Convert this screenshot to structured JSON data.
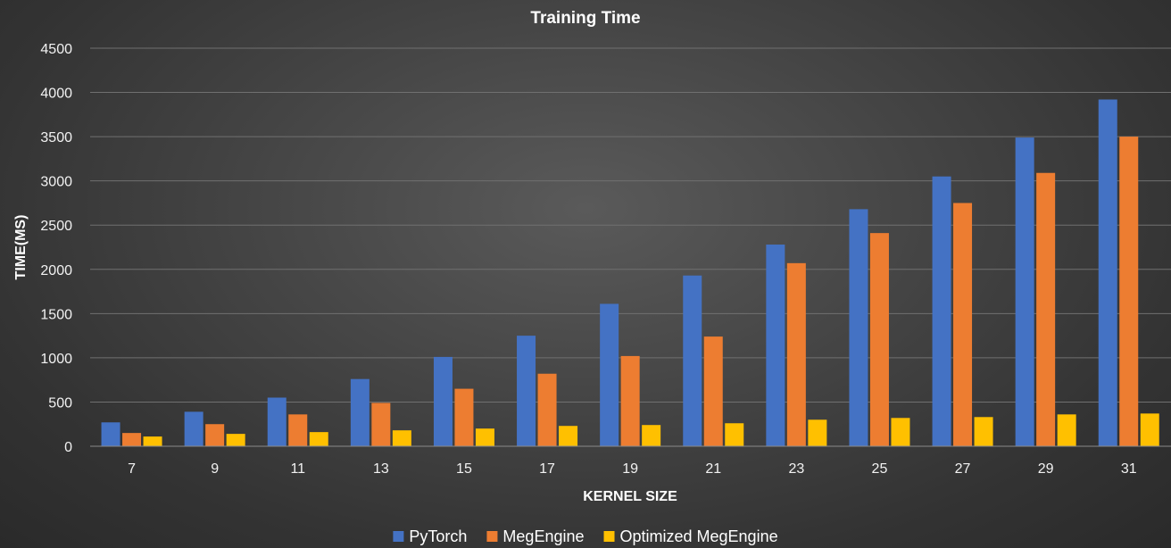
{
  "chart_data": {
    "type": "bar",
    "title": "Training Time",
    "xlabel": "KERNEL SIZE",
    "ylabel": "TIME(MS)",
    "ylim": [
      0,
      4500
    ],
    "yticks": [
      0,
      500,
      1000,
      1500,
      2000,
      2500,
      3000,
      3500,
      4000,
      4500
    ],
    "grid": true,
    "legend_position": "bottom",
    "categories": [
      "7",
      "9",
      "11",
      "13",
      "15",
      "17",
      "19",
      "21",
      "23",
      "25",
      "27",
      "29",
      "31"
    ],
    "series": [
      {
        "name": "PyTorch",
        "color": "#4472c4",
        "values": [
          270,
          390,
          550,
          760,
          1010,
          1250,
          1610,
          1930,
          2280,
          2680,
          3050,
          3490,
          3920
        ]
      },
      {
        "name": "MegEngine",
        "color": "#ed7d31",
        "values": [
          150,
          250,
          360,
          490,
          650,
          820,
          1020,
          1240,
          2070,
          2410,
          2750,
          3090,
          3500
        ]
      },
      {
        "name": "Optimized MegEngine",
        "color": "#ffc000",
        "values": [
          110,
          140,
          160,
          180,
          200,
          230,
          240,
          260,
          300,
          320,
          330,
          360,
          370
        ]
      }
    ]
  }
}
